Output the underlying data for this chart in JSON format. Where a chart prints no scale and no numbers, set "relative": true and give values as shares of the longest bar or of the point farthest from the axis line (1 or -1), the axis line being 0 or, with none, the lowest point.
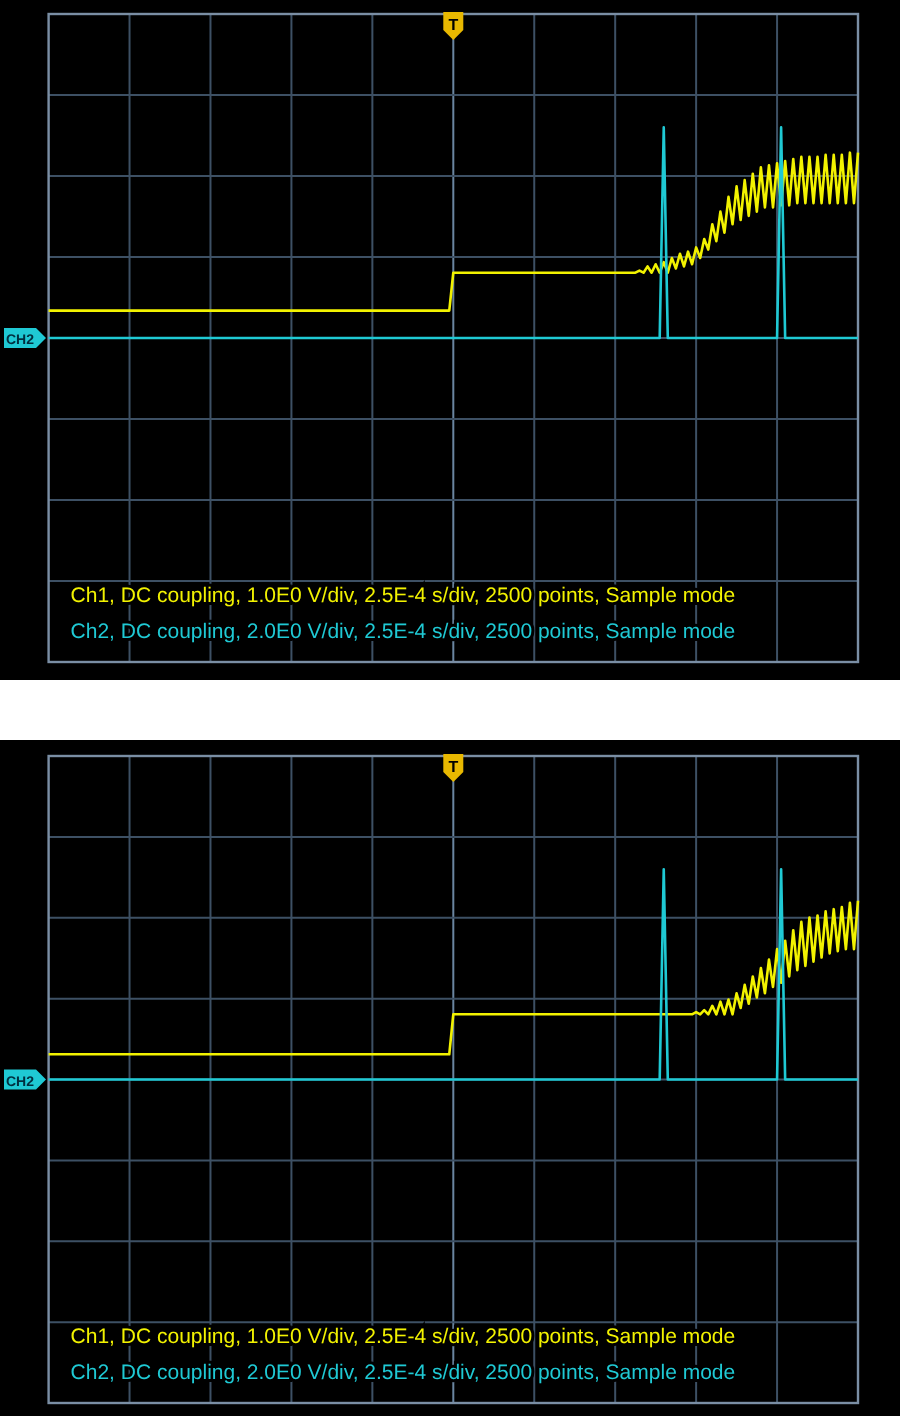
{
  "chart_data": [
    {
      "type": "line",
      "relative": true,
      "grid": true,
      "categories": [
        null,
        null,
        null,
        null,
        null,
        null,
        null,
        null,
        null,
        null,
        null,
        null,
        null,
        null,
        null,
        null,
        null,
        null,
        null,
        null,
        null,
        null,
        null,
        null,
        null,
        null,
        null,
        null,
        null,
        null,
        null,
        null,
        null,
        null,
        null,
        null,
        null,
        null,
        null,
        null,
        null,
        null,
        null,
        null,
        null,
        null,
        null,
        null,
        null,
        null,
        null,
        null,
        null,
        null,
        null,
        null,
        null,
        null,
        null,
        null,
        null,
        null,
        null,
        null,
        null,
        null,
        null,
        null,
        null,
        null,
        null,
        null,
        null,
        null,
        null,
        null,
        null,
        null,
        null,
        null,
        null,
        null,
        null,
        null,
        null,
        null,
        null,
        null,
        null,
        null,
        null,
        null,
        null,
        null,
        null,
        null,
        null,
        null,
        null,
        null,
        null,
        null,
        null,
        null,
        null,
        null,
        null,
        null,
        null,
        null,
        null,
        null,
        null,
        null,
        null,
        null,
        null,
        null,
        null,
        null,
        null,
        null,
        null,
        null,
        null,
        null,
        null,
        null,
        null,
        null,
        null,
        null,
        null,
        null,
        null,
        null,
        null,
        null,
        null,
        null,
        null,
        null,
        null,
        null,
        null,
        null,
        null,
        null,
        null,
        null,
        null,
        null,
        null,
        null,
        null,
        null,
        null,
        null,
        null,
        null,
        null,
        null,
        null,
        null,
        null,
        null,
        null,
        null,
        null,
        null,
        null,
        null,
        null,
        null,
        null,
        null,
        null,
        null,
        null,
        null,
        null,
        null,
        null,
        null,
        null,
        null,
        null,
        null,
        null,
        null,
        null,
        null,
        null,
        null,
        null,
        null,
        null,
        null,
        null,
        null,
        null
      ],
      "series": [
        {
          "color": "#f2f200",
          "values": [
            0.13,
            0.13,
            0.13,
            0.13,
            0.13,
            0.13,
            0.13,
            0.13,
            0.13,
            0.13,
            0.13,
            0.13,
            0.13,
            0.13,
            0.13,
            0.13,
            0.13,
            0.13,
            0.13,
            0.13,
            0.13,
            0.13,
            0.13,
            0.13,
            0.13,
            0.13,
            0.13,
            0.13,
            0.13,
            0.13,
            0.13,
            0.13,
            0.13,
            0.13,
            0.13,
            0.13,
            0.13,
            0.13,
            0.13,
            0.13,
            0.13,
            0.13,
            0.13,
            0.13,
            0.13,
            0.13,
            0.13,
            0.13,
            0.13,
            0.13,
            0.13,
            0.13,
            0.13,
            0.13,
            0.13,
            0.13,
            0.13,
            0.13,
            0.13,
            0.13,
            0.13,
            0.13,
            0.13,
            0.13,
            0.13,
            0.13,
            0.13,
            0.13,
            0.13,
            0.13,
            0.13,
            0.13,
            0.13,
            0.13,
            0.13,
            0.13,
            0.13,
            0.13,
            0.13,
            0.13,
            0.13,
            0.13,
            0.13,
            0.13,
            0.13,
            0.13,
            0.13,
            0.13,
            0.13,
            0.13,
            0.13,
            0.13,
            0.13,
            0.13,
            0.13,
            0.13,
            0.13,
            0.13,
            0.13,
            0.13,
            0.31,
            0.31,
            0.31,
            0.31,
            0.31,
            0.31,
            0.31,
            0.31,
            0.31,
            0.31,
            0.31,
            0.31,
            0.31,
            0.31,
            0.31,
            0.31,
            0.31,
            0.31,
            0.31,
            0.31,
            0.31,
            0.31,
            0.31,
            0.31,
            0.31,
            0.31,
            0.31,
            0.31,
            0.31,
            0.31,
            0.31,
            0.31,
            0.31,
            0.31,
            0.31,
            0.31,
            0.31,
            0.31,
            0.31,
            0.31,
            0.31,
            0.31,
            0.31,
            0.31,
            0.31,
            0.31,
            0.32,
            0.31,
            0.34,
            0.31,
            0.35,
            0.31,
            0.36,
            0.31,
            0.38,
            0.33,
            0.4,
            0.34,
            0.41,
            0.35,
            0.43,
            0.38,
            0.47,
            0.42,
            0.54,
            0.46,
            0.6,
            0.5,
            0.67,
            0.54,
            0.72,
            0.56,
            0.75,
            0.58,
            0.78,
            0.6,
            0.81,
            0.62,
            0.82,
            0.62,
            0.83,
            0.63,
            0.84,
            0.63,
            0.85,
            0.64,
            0.86,
            0.64,
            0.86,
            0.64,
            0.86,
            0.64,
            0.87,
            0.64,
            0.87,
            0.64,
            0.87,
            0.64,
            0.88,
            0.64,
            0.88
          ]
        },
        {
          "color": "#1fc9d4",
          "values": [
            0,
            0,
            0,
            0,
            0,
            0,
            0,
            0,
            0,
            0,
            0,
            0,
            0,
            0,
            0,
            0,
            0,
            0,
            0,
            0,
            0,
            0,
            0,
            0,
            0,
            0,
            0,
            0,
            0,
            0,
            0,
            0,
            0,
            0,
            0,
            0,
            0,
            0,
            0,
            0,
            0,
            0,
            0,
            0,
            0,
            0,
            0,
            0,
            0,
            0,
            0,
            0,
            0,
            0,
            0,
            0,
            0,
            0,
            0,
            0,
            0,
            0,
            0,
            0,
            0,
            0,
            0,
            0,
            0,
            0,
            0,
            0,
            0,
            0,
            0,
            0,
            0,
            0,
            0,
            0,
            0,
            0,
            0,
            0,
            0,
            0,
            0,
            0,
            0,
            0,
            0,
            0,
            0,
            0,
            0,
            0,
            0,
            0,
            0,
            0,
            0,
            0,
            0,
            0,
            0,
            0,
            0,
            0,
            0,
            0,
            0,
            0,
            0,
            0,
            0,
            0,
            0,
            0,
            0,
            0,
            0,
            0,
            0,
            0,
            0,
            0,
            0,
            0,
            0,
            0,
            0,
            0,
            0,
            0,
            0,
            0,
            0,
            0,
            0,
            0,
            0,
            0,
            0,
            0,
            0,
            0,
            0,
            0,
            0,
            0,
            0,
            0,
            1,
            0,
            0,
            0,
            0,
            0,
            0,
            0,
            0,
            0,
            0,
            0,
            0,
            0,
            0,
            0,
            0,
            0,
            0,
            0,
            0,
            0,
            0,
            0,
            0,
            0,
            0,
            0,
            0,
            1,
            0,
            0,
            0,
            0,
            0,
            0,
            0,
            0,
            0,
            0,
            0,
            0,
            0,
            0,
            0,
            0,
            0,
            0,
            0
          ]
        }
      ],
      "annotations": [
        "Ch1, DC coupling, 1.0E0 V/div, 2.5E-4 s/div, 2500 points, Sample mode",
        "Ch2, DC coupling, 2.0E0 V/div, 2.5E-4 s/div, 2500 points, Sample mode",
        "CH2",
        "T"
      ]
    },
    {
      "type": "line",
      "relative": true,
      "grid": true,
      "categories": [
        null,
        null,
        null,
        null,
        null,
        null,
        null,
        null,
        null,
        null,
        null,
        null,
        null,
        null,
        null,
        null,
        null,
        null,
        null,
        null,
        null,
        null,
        null,
        null,
        null,
        null,
        null,
        null,
        null,
        null,
        null,
        null,
        null,
        null,
        null,
        null,
        null,
        null,
        null,
        null,
        null,
        null,
        null,
        null,
        null,
        null,
        null,
        null,
        null,
        null,
        null,
        null,
        null,
        null,
        null,
        null,
        null,
        null,
        null,
        null,
        null,
        null,
        null,
        null,
        null,
        null,
        null,
        null,
        null,
        null,
        null,
        null,
        null,
        null,
        null,
        null,
        null,
        null,
        null,
        null,
        null,
        null,
        null,
        null,
        null,
        null,
        null,
        null,
        null,
        null,
        null,
        null,
        null,
        null,
        null,
        null,
        null,
        null,
        null,
        null,
        null,
        null,
        null,
        null,
        null,
        null,
        null,
        null,
        null,
        null,
        null,
        null,
        null,
        null,
        null,
        null,
        null,
        null,
        null,
        null,
        null,
        null,
        null,
        null,
        null,
        null,
        null,
        null,
        null,
        null,
        null,
        null,
        null,
        null,
        null,
        null,
        null,
        null,
        null,
        null,
        null,
        null,
        null,
        null,
        null,
        null,
        null,
        null,
        null,
        null,
        null,
        null,
        null,
        null,
        null,
        null,
        null,
        null,
        null,
        null,
        null,
        null,
        null,
        null,
        null,
        null,
        null,
        null,
        null,
        null,
        null,
        null,
        null,
        null,
        null,
        null,
        null,
        null,
        null,
        null,
        null,
        null,
        null,
        null,
        null,
        null,
        null,
        null,
        null,
        null,
        null,
        null,
        null,
        null,
        null,
        null,
        null,
        null,
        null,
        null,
        null
      ],
      "series": [
        {
          "color": "#f2f200",
          "values": [
            0.12,
            0.12,
            0.12,
            0.12,
            0.12,
            0.12,
            0.12,
            0.12,
            0.12,
            0.12,
            0.12,
            0.12,
            0.12,
            0.12,
            0.12,
            0.12,
            0.12,
            0.12,
            0.12,
            0.12,
            0.12,
            0.12,
            0.12,
            0.12,
            0.12,
            0.12,
            0.12,
            0.12,
            0.12,
            0.12,
            0.12,
            0.12,
            0.12,
            0.12,
            0.12,
            0.12,
            0.12,
            0.12,
            0.12,
            0.12,
            0.12,
            0.12,
            0.12,
            0.12,
            0.12,
            0.12,
            0.12,
            0.12,
            0.12,
            0.12,
            0.12,
            0.12,
            0.12,
            0.12,
            0.12,
            0.12,
            0.12,
            0.12,
            0.12,
            0.12,
            0.12,
            0.12,
            0.12,
            0.12,
            0.12,
            0.12,
            0.12,
            0.12,
            0.12,
            0.12,
            0.12,
            0.12,
            0.12,
            0.12,
            0.12,
            0.12,
            0.12,
            0.12,
            0.12,
            0.12,
            0.12,
            0.12,
            0.12,
            0.12,
            0.12,
            0.12,
            0.12,
            0.12,
            0.12,
            0.12,
            0.12,
            0.12,
            0.12,
            0.12,
            0.12,
            0.12,
            0.12,
            0.12,
            0.12,
            0.12,
            0.31,
            0.31,
            0.31,
            0.31,
            0.31,
            0.31,
            0.31,
            0.31,
            0.31,
            0.31,
            0.31,
            0.31,
            0.31,
            0.31,
            0.31,
            0.31,
            0.31,
            0.31,
            0.31,
            0.31,
            0.31,
            0.31,
            0.31,
            0.31,
            0.31,
            0.31,
            0.31,
            0.31,
            0.31,
            0.31,
            0.31,
            0.31,
            0.31,
            0.31,
            0.31,
            0.31,
            0.31,
            0.31,
            0.31,
            0.31,
            0.31,
            0.31,
            0.31,
            0.31,
            0.31,
            0.31,
            0.31,
            0.31,
            0.31,
            0.31,
            0.31,
            0.31,
            0.31,
            0.31,
            0.31,
            0.31,
            0.31,
            0.31,
            0.31,
            0.31,
            0.32,
            0.31,
            0.33,
            0.31,
            0.35,
            0.31,
            0.37,
            0.31,
            0.38,
            0.31,
            0.41,
            0.34,
            0.45,
            0.36,
            0.49,
            0.39,
            0.53,
            0.41,
            0.57,
            0.44,
            0.62,
            0.46,
            0.66,
            0.49,
            0.71,
            0.52,
            0.75,
            0.54,
            0.77,
            0.56,
            0.78,
            0.58,
            0.8,
            0.6,
            0.81,
            0.61,
            0.82,
            0.62,
            0.84,
            0.62,
            0.85
          ]
        },
        {
          "color": "#1fc9d4",
          "values": [
            0,
            0,
            0,
            0,
            0,
            0,
            0,
            0,
            0,
            0,
            0,
            0,
            0,
            0,
            0,
            0,
            0,
            0,
            0,
            0,
            0,
            0,
            0,
            0,
            0,
            0,
            0,
            0,
            0,
            0,
            0,
            0,
            0,
            0,
            0,
            0,
            0,
            0,
            0,
            0,
            0,
            0,
            0,
            0,
            0,
            0,
            0,
            0,
            0,
            0,
            0,
            0,
            0,
            0,
            0,
            0,
            0,
            0,
            0,
            0,
            0,
            0,
            0,
            0,
            0,
            0,
            0,
            0,
            0,
            0,
            0,
            0,
            0,
            0,
            0,
            0,
            0,
            0,
            0,
            0,
            0,
            0,
            0,
            0,
            0,
            0,
            0,
            0,
            0,
            0,
            0,
            0,
            0,
            0,
            0,
            0,
            0,
            0,
            0,
            0,
            0,
            0,
            0,
            0,
            0,
            0,
            0,
            0,
            0,
            0,
            0,
            0,
            0,
            0,
            0,
            0,
            0,
            0,
            0,
            0,
            0,
            0,
            0,
            0,
            0,
            0,
            0,
            0,
            0,
            0,
            0,
            0,
            0,
            0,
            0,
            0,
            0,
            0,
            0,
            0,
            0,
            0,
            0,
            0,
            0,
            0,
            0,
            0,
            0,
            0,
            0,
            0,
            1,
            0,
            0,
            0,
            0,
            0,
            0,
            0,
            0,
            0,
            0,
            0,
            0,
            0,
            0,
            0,
            0,
            0,
            0,
            0,
            0,
            0,
            0,
            0,
            0,
            0,
            0,
            0,
            0,
            1,
            0,
            0,
            0,
            0,
            0,
            0,
            0,
            0,
            0,
            0,
            0,
            0,
            0,
            0,
            0,
            0,
            0,
            0,
            0
          ]
        }
      ],
      "annotations": [
        "Ch1, DC coupling, 1.0E0 V/div, 2.5E-4 s/div, 2500 points, Sample mode",
        "Ch2, DC coupling, 2.0E0 V/div, 2.5E-4 s/div, 2500 points, Sample mode",
        "CH2",
        "T"
      ]
    }
  ]
}
